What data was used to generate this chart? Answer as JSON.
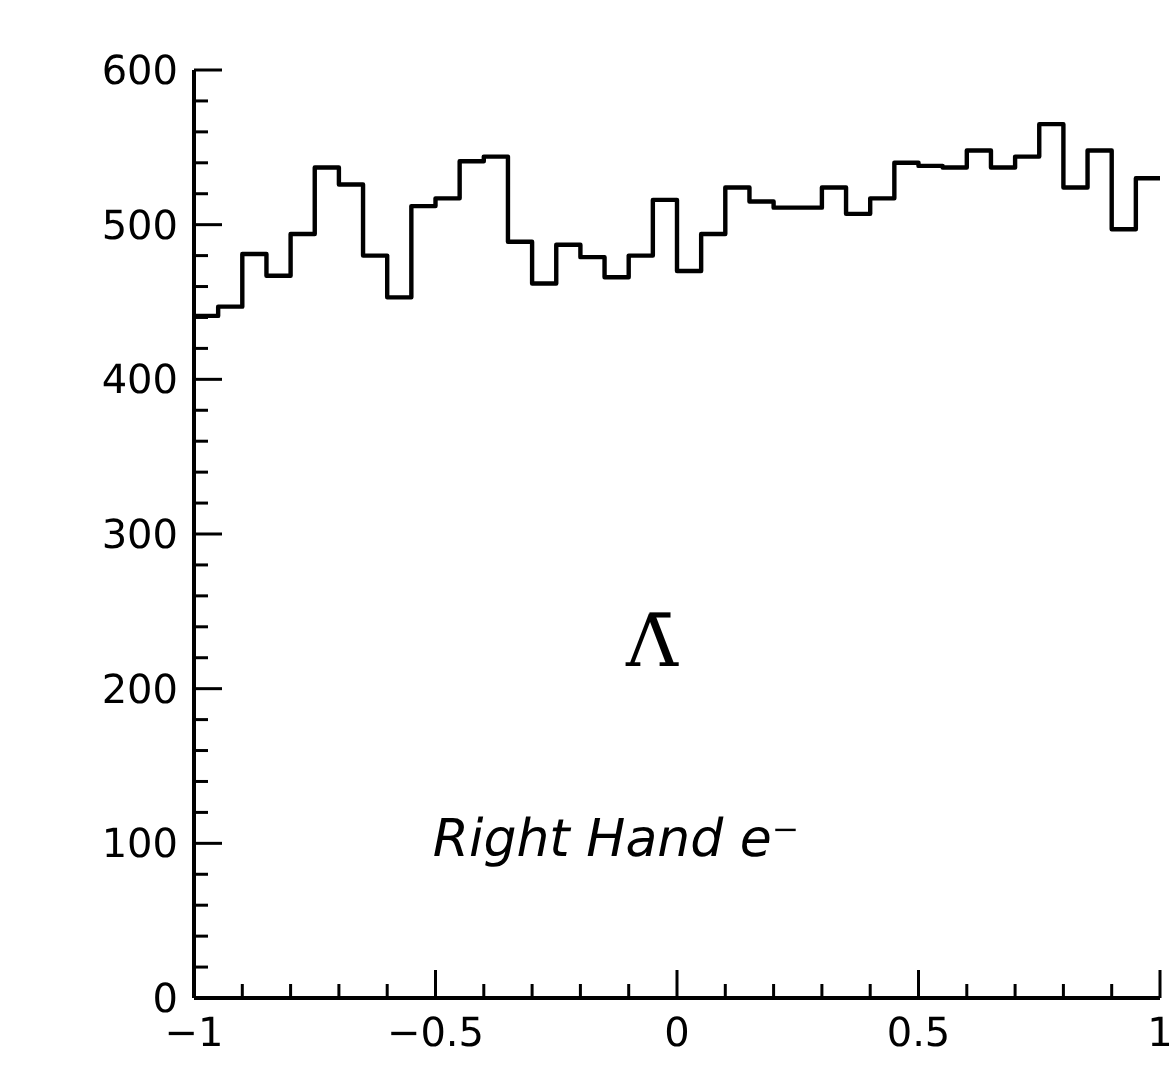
{
  "chart_data": {
    "type": "histogram",
    "bins": [
      -1,
      -0.95,
      -0.9,
      -0.85,
      -0.8,
      -0.75,
      -0.7,
      -0.65,
      -0.6,
      -0.55,
      -0.5,
      -0.45,
      -0.4,
      -0.35,
      -0.3,
      -0.25,
      -0.2,
      -0.15,
      -0.1,
      -0.05,
      0,
      0.05,
      0.1,
      0.15,
      0.2,
      0.25,
      0.3,
      0.35,
      0.4,
      0.45,
      0.5,
      0.55,
      0.6,
      0.65,
      0.7,
      0.75,
      0.8,
      0.85,
      0.9,
      0.95,
      1
    ],
    "values": [
      441,
      447,
      481,
      467,
      494,
      537,
      526,
      480,
      453,
      512,
      517,
      541,
      544,
      489,
      462,
      487,
      479,
      466,
      480,
      516,
      470,
      494,
      524,
      515,
      511,
      511,
      524,
      507,
      517,
      540,
      538,
      537,
      548,
      537,
      544,
      565,
      524,
      548,
      497,
      530
    ],
    "color": "#000000",
    "xlim": [
      -1,
      1
    ],
    "xticks": [
      -1,
      {
        "value": -0.9,
        "label": null
      },
      {
        "value": -0.8,
        "label": null
      },
      {
        "value": -0.7,
        "label": null
      },
      {
        "value": -0.6,
        "label": null
      },
      -0.5,
      {
        "value": -0.4,
        "label": null
      },
      {
        "value": -0.3,
        "label": null
      },
      {
        "value": -0.2,
        "label": null
      },
      {
        "value": -0.1,
        "label": null
      },
      0,
      {
        "value": 0.1,
        "label": null
      },
      {
        "value": 0.2,
        "label": null
      },
      {
        "value": 0.3,
        "label": null
      },
      {
        "value": 0.4,
        "label": null
      },
      0.5,
      {
        "value": 0.6,
        "label": null
      },
      {
        "value": 0.7,
        "label": null
      },
      {
        "value": 0.8,
        "label": null
      },
      {
        "value": 0.9,
        "label": null
      },
      1
    ],
    "ylim": [
      0,
      600
    ],
    "yticks": [
      0,
      {
        "value": 20,
        "label": null
      },
      {
        "value": 40,
        "label": null
      },
      {
        "value": 60,
        "label": null
      },
      {
        "value": 80,
        "label": null
      },
      100,
      {
        "value": 120,
        "label": null
      },
      {
        "value": 140,
        "label": null
      },
      {
        "value": 160,
        "label": null
      },
      {
        "value": 180,
        "label": null
      },
      200,
      {
        "value": 220,
        "label": null
      },
      {
        "value": 240,
        "label": null
      },
      {
        "value": 260,
        "label": null
      },
      {
        "value": 280,
        "label": null
      },
      300,
      {
        "value": 320,
        "label": null
      },
      {
        "value": 340,
        "label": null
      },
      {
        "value": 360,
        "label": null
      },
      {
        "value": 380,
        "label": null
      },
      400,
      {
        "value": 420,
        "label": null
      },
      {
        "value": 440,
        "label": null
      },
      {
        "value": 460,
        "label": null
      },
      {
        "value": 480,
        "label": null
      },
      500,
      {
        "value": 520,
        "label": null
      },
      {
        "value": 540,
        "label": null
      },
      {
        "value": 560,
        "label": null
      },
      {
        "value": 580,
        "label": null
      },
      600
    ],
    "grid": false,
    "annotations": [
      "Λ̄",
      "Right Hand e⁻"
    ]
  }
}
